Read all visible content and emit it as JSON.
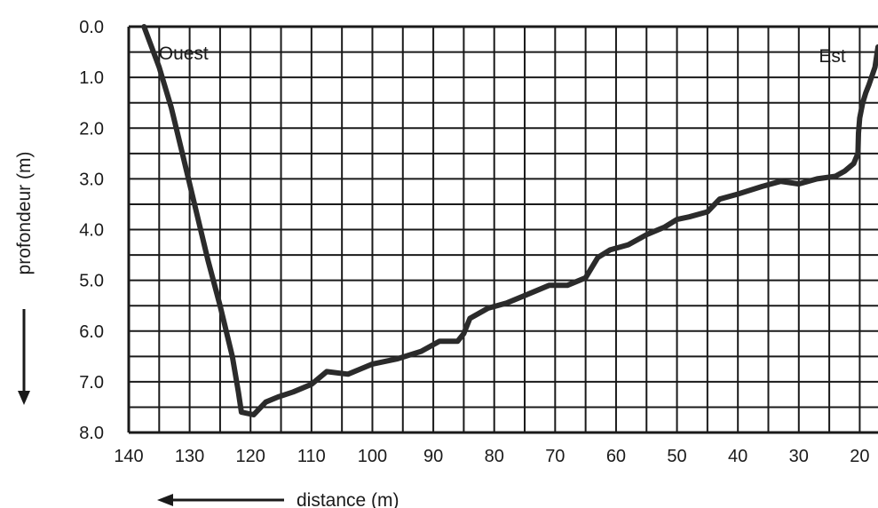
{
  "chart_data": {
    "type": "line",
    "title": "",
    "xlabel": "distance (m)",
    "ylabel": "profondeur (m)",
    "xlim": [
      140,
      17
    ],
    "ylim": [
      0,
      8
    ],
    "x_reversed": true,
    "y_inverted": true,
    "grid": true,
    "x_ticks": [
      "140",
      "130",
      "120",
      "110",
      "100",
      "90",
      "80",
      "70",
      "60",
      "50",
      "40",
      "30",
      "20"
    ],
    "y_ticks": [
      "0.0",
      "1.0",
      "2.0",
      "3.0",
      "4.0",
      "5.0",
      "6.0",
      "7.0",
      "8.0"
    ],
    "annotations": [
      {
        "text": "Ouest",
        "x": 131,
        "y": 0.55
      },
      {
        "text": "Est",
        "x": 24.5,
        "y": 0.6
      }
    ],
    "series": [
      {
        "values_xy": [
          [
            137.5,
            0.0
          ],
          [
            135,
            0.8
          ],
          [
            133,
            1.6
          ],
          [
            131,
            2.6
          ],
          [
            129,
            3.6
          ],
          [
            127,
            4.6
          ],
          [
            125,
            5.5
          ],
          [
            123,
            6.5
          ],
          [
            122,
            7.2
          ],
          [
            121.5,
            7.6
          ],
          [
            119.5,
            7.65
          ],
          [
            117.5,
            7.4
          ],
          [
            115.5,
            7.3
          ],
          [
            113,
            7.2
          ],
          [
            110,
            7.05
          ],
          [
            107.5,
            6.8
          ],
          [
            104,
            6.85
          ],
          [
            102,
            6.75
          ],
          [
            100,
            6.65
          ],
          [
            96,
            6.55
          ],
          [
            92,
            6.4
          ],
          [
            89,
            6.2
          ],
          [
            86,
            6.2
          ],
          [
            85,
            6.05
          ],
          [
            84,
            5.75
          ],
          [
            81,
            5.55
          ],
          [
            78,
            5.45
          ],
          [
            75,
            5.3
          ],
          [
            71,
            5.1
          ],
          [
            68,
            5.1
          ],
          [
            65,
            4.95
          ],
          [
            63,
            4.55
          ],
          [
            61,
            4.4
          ],
          [
            58,
            4.3
          ],
          [
            55,
            4.1
          ],
          [
            52,
            3.95
          ],
          [
            50,
            3.8
          ],
          [
            48,
            3.75
          ],
          [
            45,
            3.65
          ],
          [
            43,
            3.4
          ],
          [
            40,
            3.3
          ],
          [
            36,
            3.15
          ],
          [
            33,
            3.05
          ],
          [
            30,
            3.1
          ],
          [
            27,
            3.0
          ],
          [
            24,
            2.95
          ],
          [
            22.5,
            2.85
          ],
          [
            21,
            2.7
          ],
          [
            20.3,
            2.5
          ],
          [
            20.2,
            2.1
          ],
          [
            20.0,
            1.8
          ],
          [
            19.5,
            1.5
          ],
          [
            19.0,
            1.3
          ],
          [
            18.5,
            1.15
          ],
          [
            17.5,
            0.8
          ],
          [
            17.0,
            0.4
          ]
        ]
      }
    ]
  }
}
